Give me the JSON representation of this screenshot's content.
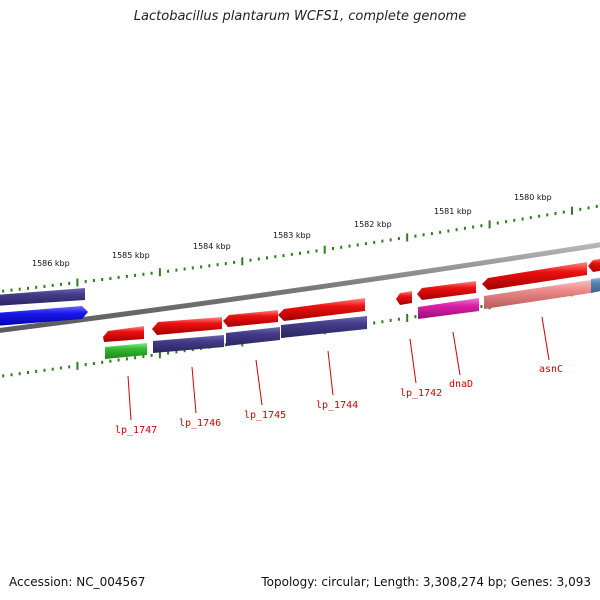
{
  "title": "Lactobacillus plantarum WCFS1, complete genome",
  "footer": {
    "accession": "Accession: NC_004567",
    "summary": "Topology: circular; Length: 3,308,274 bp; Genes: 3,093"
  },
  "scale_labels": [
    "1586 kbp",
    "1585 kbp",
    "1584 kbp",
    "1583 kbp",
    "1582 kbp",
    "1581 kbp",
    "1580 kbp"
  ],
  "gene_labels": [
    "lp_1747",
    "lp_1746",
    "lp_1745",
    "lp_1744",
    "lp_1742",
    "dnaD",
    "asnC"
  ],
  "colors": {
    "backbone": "#808080",
    "ticks": "#2d7d1f",
    "red_gene": "#ee1111",
    "dark_blue_gene": "#443c88",
    "blue_gene": "#1a1aee",
    "green_gene": "#33bb33",
    "magenta_gene": "#dd22aa",
    "pink_gene": "#ee8a8a",
    "steel_gene": "#5a86b4",
    "label": "#d40000"
  }
}
